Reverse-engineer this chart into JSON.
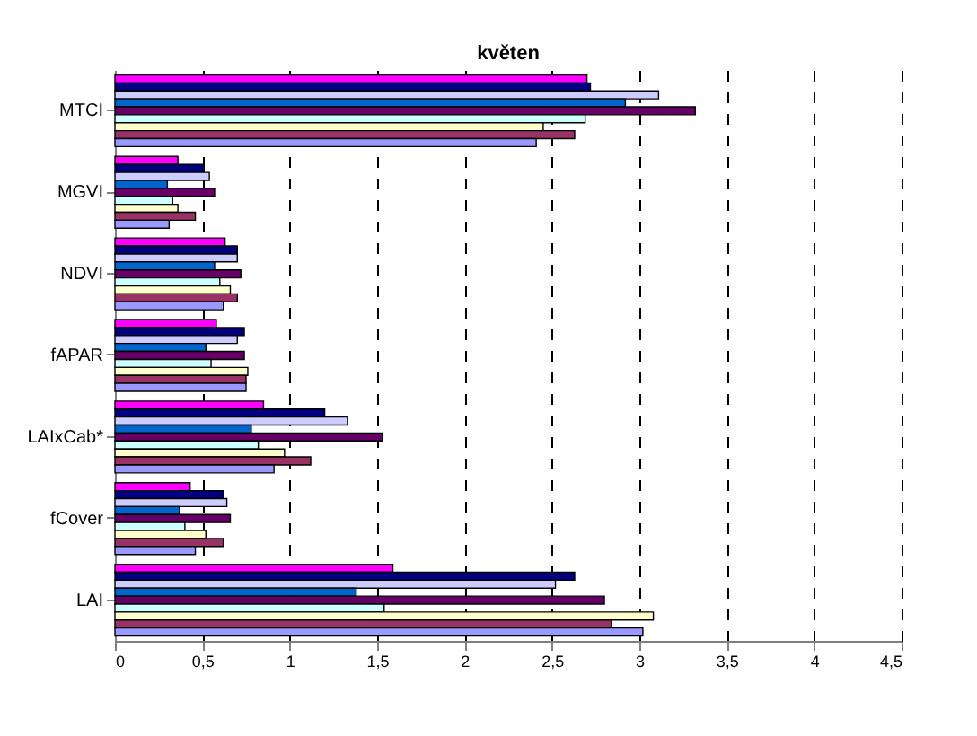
{
  "chart_data": {
    "type": "bar",
    "orientation": "horizontal",
    "title": "květen",
    "categories": [
      "MTCI",
      "MGVI",
      "NDVI",
      "fAPAR",
      "LAIxCab*",
      "fCover",
      "LAI"
    ],
    "series": [
      {
        "color": "#ff00ff",
        "values": [
          2.7,
          0.36,
          0.63,
          0.58,
          0.85,
          0.43,
          1.59
        ]
      },
      {
        "color": "#000080",
        "values": [
          2.72,
          0.51,
          0.7,
          0.74,
          1.2,
          0.62,
          2.63
        ]
      },
      {
        "color": "#ccccff",
        "values": [
          3.11,
          0.54,
          0.7,
          0.7,
          1.33,
          0.64,
          2.52
        ]
      },
      {
        "color": "#0066cc",
        "values": [
          2.92,
          0.3,
          0.57,
          0.52,
          0.78,
          0.37,
          1.38
        ]
      },
      {
        "color": "#660066",
        "values": [
          3.32,
          0.57,
          0.72,
          0.74,
          1.53,
          0.66,
          2.8
        ]
      },
      {
        "color": "#ccffff",
        "values": [
          2.69,
          0.33,
          0.6,
          0.55,
          0.82,
          0.4,
          1.54
        ]
      },
      {
        "color": "#ffffcc",
        "values": [
          2.45,
          0.36,
          0.66,
          0.76,
          0.97,
          0.52,
          3.08
        ]
      },
      {
        "color": "#993366",
        "values": [
          2.63,
          0.46,
          0.7,
          0.75,
          1.12,
          0.62,
          2.84
        ]
      },
      {
        "color": "#9999ff",
        "values": [
          2.41,
          0.31,
          0.62,
          0.75,
          0.91,
          0.46,
          3.02
        ]
      }
    ],
    "xlim": [
      0,
      4.5
    ],
    "xticks": [
      0,
      {
        "value": 0.5,
        "label": "0,5"
      },
      1,
      {
        "value": 1.5,
        "label": "1,5"
      },
      2,
      {
        "value": 2.5,
        "label": "2,5"
      },
      3,
      {
        "value": 3.5,
        "label": "3,5"
      },
      4,
      {
        "value": 4.5,
        "label": "4,5"
      }
    ],
    "grid": "x",
    "legend": false
  }
}
